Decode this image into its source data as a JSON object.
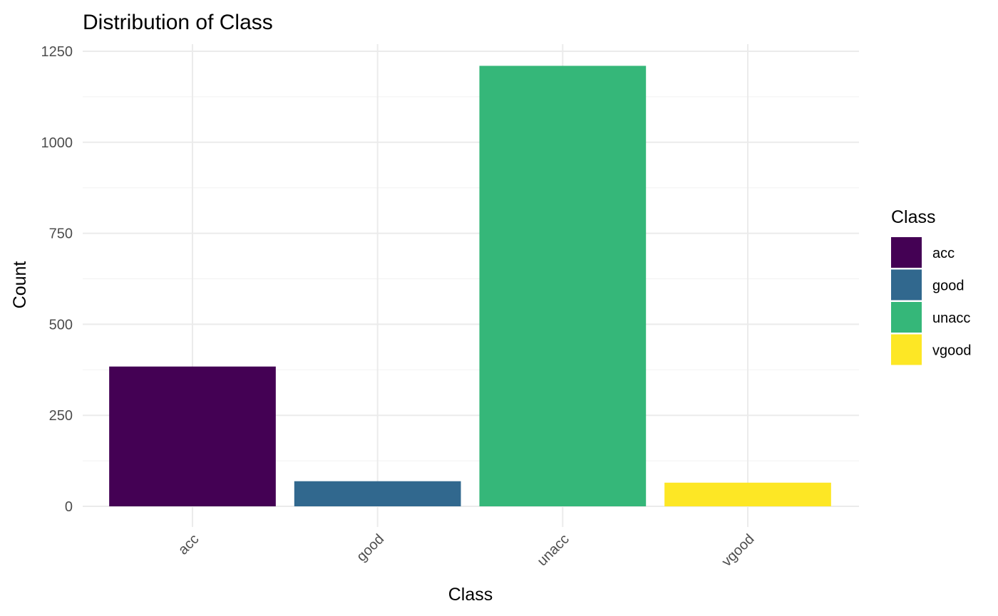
{
  "chart_data": {
    "type": "bar",
    "title": "Distribution of Class",
    "xlabel": "Class",
    "ylabel": "Count",
    "categories": [
      "acc",
      "good",
      "unacc",
      "vgood"
    ],
    "values": [
      384,
      69,
      1210,
      65
    ],
    "colors": [
      "#440154",
      "#31688E",
      "#35B779",
      "#FDE725"
    ],
    "ylim": [
      0,
      1250
    ],
    "yticks": [
      0,
      250,
      500,
      750,
      1000,
      1250
    ],
    "ytick_labels": [
      "0",
      "250",
      "500",
      "750",
      "1000",
      "1250"
    ],
    "grid": true,
    "legend": {
      "title": "Class",
      "position": "right",
      "entries": [
        "acc",
        "good",
        "unacc",
        "vgood"
      ]
    }
  }
}
